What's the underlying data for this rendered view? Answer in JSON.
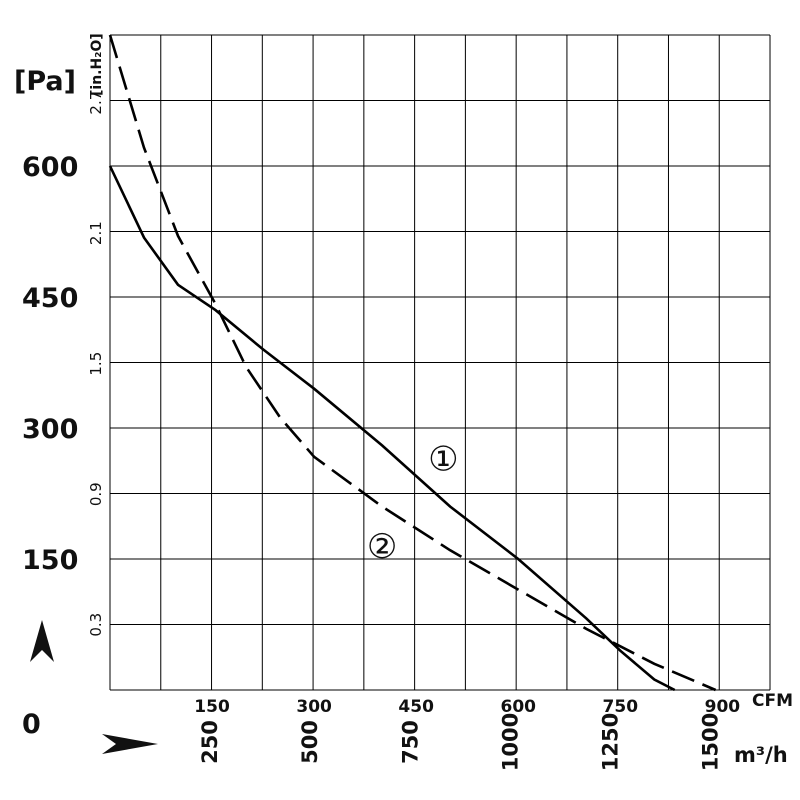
{
  "chart_data": {
    "type": "line",
    "units": {
      "pressure": "[Pa]",
      "pressure_alt": "[in.H₂O]",
      "flow": "CFM",
      "flow_alt": "m³/h"
    },
    "origin_label": "0",
    "y_ticks_pa": [
      {
        "value": 150,
        "label": "150"
      },
      {
        "value": 300,
        "label": "300"
      },
      {
        "value": 450,
        "label": "450"
      },
      {
        "value": 600,
        "label": "600"
      }
    ],
    "y_ticks_inh2o": [
      {
        "value": 0.3,
        "label": "0.3"
      },
      {
        "value": 0.9,
        "label": "0.9"
      },
      {
        "value": 1.5,
        "label": "1.5"
      },
      {
        "value": 2.1,
        "label": "2.1"
      },
      {
        "value": 2.7,
        "label": "2.7"
      }
    ],
    "x_ticks_cfm": [
      {
        "value": 150,
        "label": "150"
      },
      {
        "value": 300,
        "label": "300"
      },
      {
        "value": 450,
        "label": "450"
      },
      {
        "value": 600,
        "label": "600"
      },
      {
        "value": 750,
        "label": "750"
      },
      {
        "value": 900,
        "label": "900"
      }
    ],
    "x_ticks_m3h": [
      {
        "value": 250,
        "label": "250"
      },
      {
        "value": 500,
        "label": "500"
      },
      {
        "value": 750,
        "label": "750"
      },
      {
        "value": 1000,
        "label": "1000"
      },
      {
        "value": 1250,
        "label": "1250"
      },
      {
        "value": 1500,
        "label": "1500"
      }
    ],
    "xlim_cfm": [
      0,
      970
    ],
    "ylim_pa": [
      0,
      750
    ],
    "grid": true,
    "series": [
      {
        "marker": "①",
        "line_style": "solid",
        "points_cfm_pa": [
          [
            0,
            600
          ],
          [
            50,
            518
          ],
          [
            100,
            464
          ],
          [
            155,
            435
          ],
          [
            225,
            390
          ],
          [
            300,
            345
          ],
          [
            400,
            280
          ],
          [
            500,
            210
          ],
          [
            600,
            150
          ],
          [
            700,
            82
          ],
          [
            750,
            45
          ],
          [
            800,
            12
          ],
          [
            830,
            0
          ]
        ]
      },
      {
        "marker": "②",
        "line_style": "dashed",
        "points_cfm_pa": [
          [
            0,
            750
          ],
          [
            50,
            621
          ],
          [
            100,
            520
          ],
          [
            155,
            442
          ],
          [
            200,
            370
          ],
          [
            250,
            312
          ],
          [
            300,
            267
          ],
          [
            400,
            210
          ],
          [
            500,
            160
          ],
          [
            600,
            115
          ],
          [
            700,
            70
          ],
          [
            750,
            50
          ],
          [
            800,
            30
          ],
          [
            890,
            0
          ]
        ]
      }
    ],
    "annotations": [
      {
        "text": "①",
        "series": 0,
        "at_cfm_pa": [
          490,
          265
        ]
      },
      {
        "text": "②",
        "series": 1,
        "at_cfm_pa": [
          400,
          165
        ]
      }
    ]
  }
}
